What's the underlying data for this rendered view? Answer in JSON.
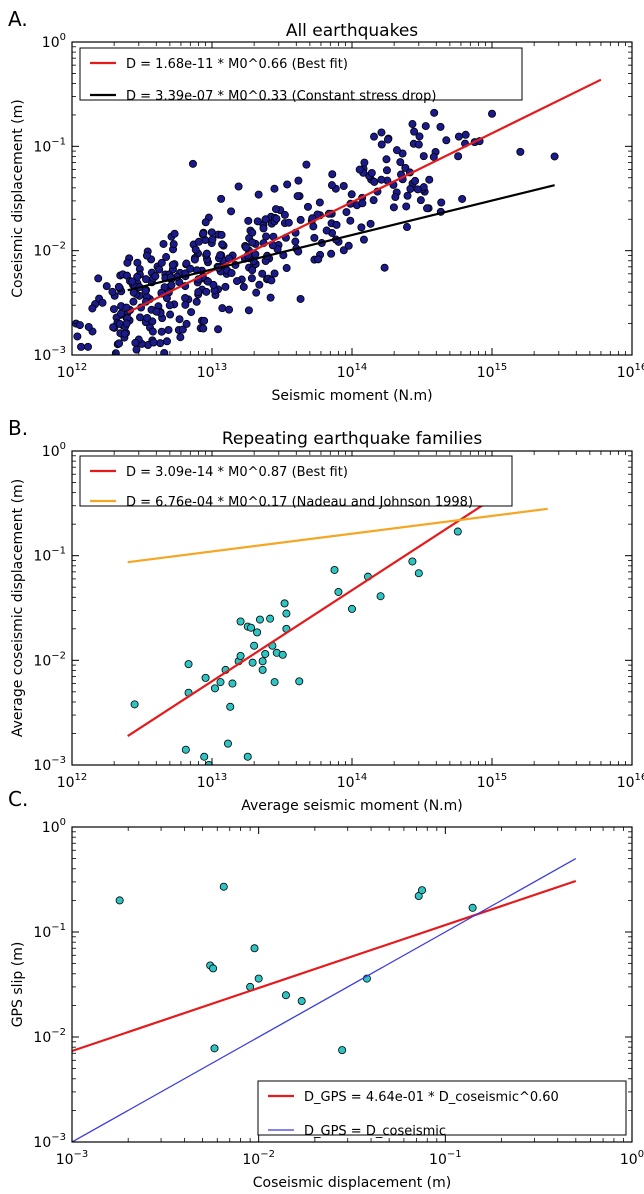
{
  "chart_data": [
    {
      "type": "scatter",
      "panel_label": "A.",
      "title": "All earthquakes",
      "xlabel": "Seismic moment (N.m)",
      "ylabel": "Coseismic displacement (m)",
      "xscale": "log",
      "yscale": "log",
      "xlim": [
        1000000000000.0,
        1e+16
      ],
      "ylim": [
        0.001,
        1
      ],
      "xtick_exponents": [
        "12",
        "13",
        "14",
        "15",
        "16"
      ],
      "ytick_exponents": [
        "-3",
        "-2",
        "-1",
        "0"
      ],
      "grid": false,
      "legend_position": "top-left",
      "scatter_color": "#1a1a8c",
      "scatter_edge": "#000000",
      "scatter_seed": 7,
      "scatter_points_note": "approx 400 points, scattered around best fit",
      "series": [
        {
          "name": "D = 1.68e-11 * M0^0.66 (Best fit)",
          "kind": "fit",
          "coef": 1.68e-11,
          "exponent": 0.66,
          "x_range": [
            2500000000000.0,
            6000000000000000.0
          ],
          "color": "#e41a1c"
        },
        {
          "name": "D = 3.39e-07 * M0^0.33 (Constant stress drop)",
          "kind": "fit",
          "coef": 3.39e-07,
          "exponent": 0.33,
          "x_range": [
            2500000000000.0,
            2800000000000000.0
          ],
          "color": "#000000"
        }
      ],
      "scatter_count": 400,
      "scatter_x_range": [
        1000000000000.0,
        3000000000000000.0
      ]
    },
    {
      "type": "scatter",
      "panel_label": "B.",
      "title": "Repeating earthquake families",
      "xlabel": "Average seismic moment (N.m)",
      "ylabel": "Average coseismic displacement (m)",
      "xscale": "log",
      "yscale": "log",
      "xlim": [
        1000000000000.0,
        1e+16
      ],
      "ylim": [
        0.001,
        1
      ],
      "xtick_exponents": [
        "12",
        "13",
        "14",
        "15",
        "16"
      ],
      "ytick_exponents": [
        "-3",
        "-2",
        "-1",
        "0"
      ],
      "grid": false,
      "legend_position": "top-left",
      "scatter_color": "#2ec4c4",
      "scatter_edge": "#000000",
      "series": [
        {
          "name": "D = 3.09e-14 * M0^0.87 (Best fit)",
          "kind": "fit",
          "coef": 3.09e-14,
          "exponent": 0.87,
          "x_range": [
            2500000000000.0,
            900000000000000.0
          ],
          "color": "#e41a1c"
        },
        {
          "name": "D = 6.76e-04 * M0^0.17 (Nadeau and Johnson 1998)",
          "kind": "fit",
          "coef": 0.000676,
          "exponent": 0.17,
          "x_range": [
            2500000000000.0,
            2500000000000000.0
          ],
          "color": "#f5a623"
        }
      ],
      "points": [
        [
          2800000000000.0,
          0.0038
        ],
        [
          6500000000000.0,
          0.0014
        ],
        [
          6800000000000.0,
          0.0092
        ],
        [
          6800000000000.0,
          0.0049
        ],
        [
          8800000000000.0,
          0.0012
        ],
        [
          9000000000000.0,
          0.0068
        ],
        [
          9500000000000.0,
          0.001
        ],
        [
          10500000000000.0,
          0.0054
        ],
        [
          11500000000000.0,
          0.0062
        ],
        [
          12500000000000.0,
          0.0081
        ],
        [
          13000000000000.0,
          0.0016
        ],
        [
          13500000000000.0,
          0.0036
        ],
        [
          14000000000000.0,
          0.006
        ],
        [
          15500000000000.0,
          0.0098
        ],
        [
          16000000000000.0,
          0.011
        ],
        [
          16000000000000.0,
          0.0235
        ],
        [
          18000000000000.0,
          0.0012
        ],
        [
          18000000000000.0,
          0.021
        ],
        [
          19000000000000.0,
          0.0205
        ],
        [
          19500000000000.0,
          0.0095
        ],
        [
          20000000000000.0,
          0.0138
        ],
        [
          21000000000000.0,
          0.0185
        ],
        [
          22000000000000.0,
          0.0245
        ],
        [
          23000000000000.0,
          0.0098
        ],
        [
          23000000000000.0,
          0.0081
        ],
        [
          24000000000000.0,
          0.0115
        ],
        [
          26000000000000.0,
          0.025
        ],
        [
          27000000000000.0,
          0.0138
        ],
        [
          28000000000000.0,
          0.0062
        ],
        [
          29000000000000.0,
          0.0118
        ],
        [
          32000000000000.0,
          0.0113
        ],
        [
          33000000000000.0,
          0.035
        ],
        [
          34000000000000.0,
          0.028
        ],
        [
          34000000000000.0,
          0.02
        ],
        [
          42000000000000.0,
          0.0063
        ],
        [
          75000000000000.0,
          0.073
        ],
        [
          80000000000000.0,
          0.045
        ],
        [
          100000000000000.0,
          0.031
        ],
        [
          130000000000000.0,
          0.063
        ],
        [
          160000000000000.0,
          0.041
        ],
        [
          270000000000000.0,
          0.088
        ],
        [
          300000000000000.0,
          0.068
        ],
        [
          570000000000000.0,
          0.17
        ]
      ]
    },
    {
      "type": "scatter",
      "panel_label": "C.",
      "title": "",
      "xlabel": "Coseismic displacement (m)",
      "ylabel": "GPS slip (m)",
      "xscale": "log",
      "yscale": "log",
      "xlim": [
        0.001,
        1
      ],
      "ylim": [
        0.001,
        1
      ],
      "xtick_exponents": [
        "-3",
        "-2",
        "-1",
        "0"
      ],
      "ytick_exponents": [
        "-3",
        "-2",
        "-1",
        "0"
      ],
      "grid": false,
      "legend_position": "bottom-right",
      "scatter_color": "#2ec4c4",
      "scatter_edge": "#000000",
      "series": [
        {
          "name": "D_GPS = 4.64e-01 * D_coseismic^0.60",
          "kind": "fit",
          "coef": 0.464,
          "exponent": 0.6,
          "x_range": [
            0.001,
            0.5
          ],
          "color": "#e41a1c"
        },
        {
          "name": "D_GPS = D_coseismic",
          "kind": "fit",
          "coef": 1.0,
          "exponent": 1.0,
          "x_range": [
            0.001,
            0.5
          ],
          "color": "#3a3ae0"
        }
      ],
      "points": [
        [
          0.0018,
          0.2
        ],
        [
          0.0055,
          0.048
        ],
        [
          0.0057,
          0.045
        ],
        [
          0.0058,
          0.0078
        ],
        [
          0.0065,
          0.27
        ],
        [
          0.009,
          0.03
        ],
        [
          0.0095,
          0.07
        ],
        [
          0.01,
          0.036
        ],
        [
          0.014,
          0.025
        ],
        [
          0.017,
          0.022
        ],
        [
          0.028,
          0.0075
        ],
        [
          0.038,
          0.036
        ],
        [
          0.072,
          0.22
        ],
        [
          0.075,
          0.25
        ],
        [
          0.14,
          0.17
        ]
      ]
    }
  ]
}
